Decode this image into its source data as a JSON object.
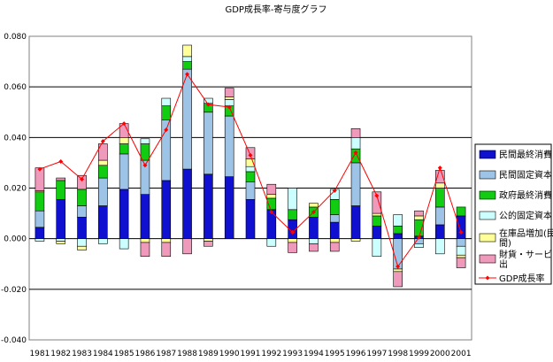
{
  "chart_data": {
    "type": "bar",
    "title": "GDP成長率-寄与度グラフ",
    "xlabel": "",
    "ylabel": "",
    "ylim": [
      -0.04,
      0.08
    ],
    "yticks": [
      "0.080",
      "0.060",
      "0.040",
      "0.020",
      "0.000",
      "-0.020",
      "-0.040"
    ],
    "yticks_values": [
      0.08,
      0.06,
      0.04,
      0.02,
      0.0,
      -0.02,
      -0.04
    ],
    "grid": true,
    "legend_position": "right",
    "categories": [
      "1981",
      "1982",
      "1983",
      "1984",
      "1985",
      "1986",
      "1987",
      "1988",
      "1989",
      "1990",
      "1991",
      "1992",
      "1993",
      "1994",
      "1995",
      "1996",
      "1997",
      "1998",
      "1999",
      "2000",
      "2001"
    ],
    "series": [
      {
        "name": "民間最終消費",
        "color": "#1010d0",
        "kind": "bar",
        "values": [
          0.0045,
          0.0155,
          0.0085,
          0.013,
          0.0195,
          0.0175,
          0.023,
          0.0275,
          0.0255,
          0.0245,
          0.0155,
          0.0115,
          0.0075,
          0.0085,
          0.0065,
          0.013,
          0.005,
          0.002,
          0.001,
          0.0055,
          0.009
        ]
      },
      {
        "name": "民間固定資本",
        "color": "#9dc3e6",
        "kind": "bar",
        "values": [
          0.0065,
          0.0,
          0.0045,
          0.011,
          0.014,
          0.0135,
          0.024,
          0.0395,
          0.0245,
          0.024,
          0.007,
          0.0,
          0.0,
          0.0,
          0.003,
          0.017,
          0.0,
          -0.012,
          -0.002,
          0.007,
          -0.003
        ]
      },
      {
        "name": "政府最終消費",
        "color": "#11cc11",
        "kind": "bar",
        "values": [
          0.0075,
          0.0075,
          0.0065,
          0.005,
          0.004,
          0.0065,
          0.0055,
          0.003,
          0.0035,
          0.004,
          0.004,
          0.0045,
          0.004,
          0.004,
          0.006,
          0.0055,
          0.004,
          0.003,
          0.0065,
          0.0075,
          0.0035
        ]
      },
      {
        "name": "公的固定資本",
        "color": "#ccffff",
        "kind": "bar",
        "values": [
          -0.001,
          -0.001,
          -0.003,
          -0.002,
          -0.004,
          0.002,
          0.003,
          0.002,
          0.002,
          0.0025,
          0.002,
          -0.003,
          0.0085,
          -0.002,
          0.004,
          0.0045,
          -0.007,
          0.0045,
          -0.0015,
          -0.006,
          -0.0035
        ]
      },
      {
        "name": "在庫品増加(民間)",
        "color": "#ffff99",
        "kind": "bar",
        "values": [
          0.0005,
          -0.001,
          -0.0015,
          0.002,
          0.0025,
          -0.0015,
          -0.0015,
          0.0045,
          -0.001,
          0.001,
          0.003,
          0.0015,
          -0.0015,
          0.0015,
          -0.0015,
          -0.001,
          0.001,
          -0.001,
          0.0015,
          0.002,
          -0.001
        ]
      },
      {
        "name": "財貨・サービス輸出",
        "color": "#f09abb",
        "kind": "bar",
        "values": [
          0.009,
          0.001,
          0.0055,
          0.0065,
          0.0055,
          -0.0055,
          -0.0055,
          -0.006,
          -0.002,
          0.0035,
          0.0045,
          0.004,
          -0.004,
          -0.003,
          -0.0035,
          0.0035,
          0.0085,
          -0.006,
          0.002,
          0.005,
          -0.004
        ]
      },
      {
        "name": "GDP成長率",
        "color": "#ff0000",
        "kind": "line",
        "values": [
          0.0275,
          0.0305,
          0.0235,
          0.0385,
          0.0455,
          0.029,
          0.043,
          0.065,
          0.053,
          0.052,
          0.033,
          0.0105,
          0.0025,
          0.0105,
          0.019,
          0.034,
          0.017,
          -0.011,
          0.0005,
          0.028,
          0.0025
        ]
      }
    ]
  }
}
